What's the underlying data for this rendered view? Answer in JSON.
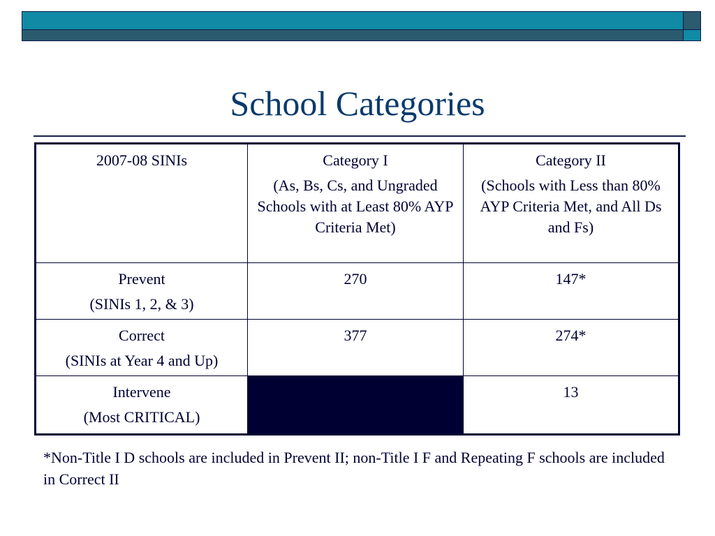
{
  "colors": {
    "bar_top": "#118aa5",
    "bar_bottom": "#2a5b6e",
    "title": "#0b3a6c",
    "text": "#000033",
    "blocked_cell": "#000033"
  },
  "title": "School Categories",
  "table": {
    "header": [
      {
        "lines": [
          "2007-08 SINIs"
        ]
      },
      {
        "lines": [
          "Category I",
          "(As, Bs, Cs, and Ungraded Schools with at Least 80% AYP Criteria Met)"
        ]
      },
      {
        "lines": [
          "Category II",
          "(Schools with Less than 80% AYP Criteria Met, and All Ds and Fs)"
        ]
      }
    ],
    "rows": [
      {
        "label": "Prevent",
        "sub": "(SINIs 1, 2, & 3)",
        "cat1": "270",
        "cat2": "147*"
      },
      {
        "label": "Correct",
        "sub": "(SINIs at Year 4 and Up)",
        "cat1": "377",
        "cat2": "274*"
      },
      {
        "label": "Intervene",
        "sub": "(Most CRITICAL)",
        "cat1": "",
        "cat2": "13"
      }
    ]
  },
  "footnote": "*Non-Title I D schools are included in Prevent II; non-Title I F and Repeating F schools are included in Correct II"
}
